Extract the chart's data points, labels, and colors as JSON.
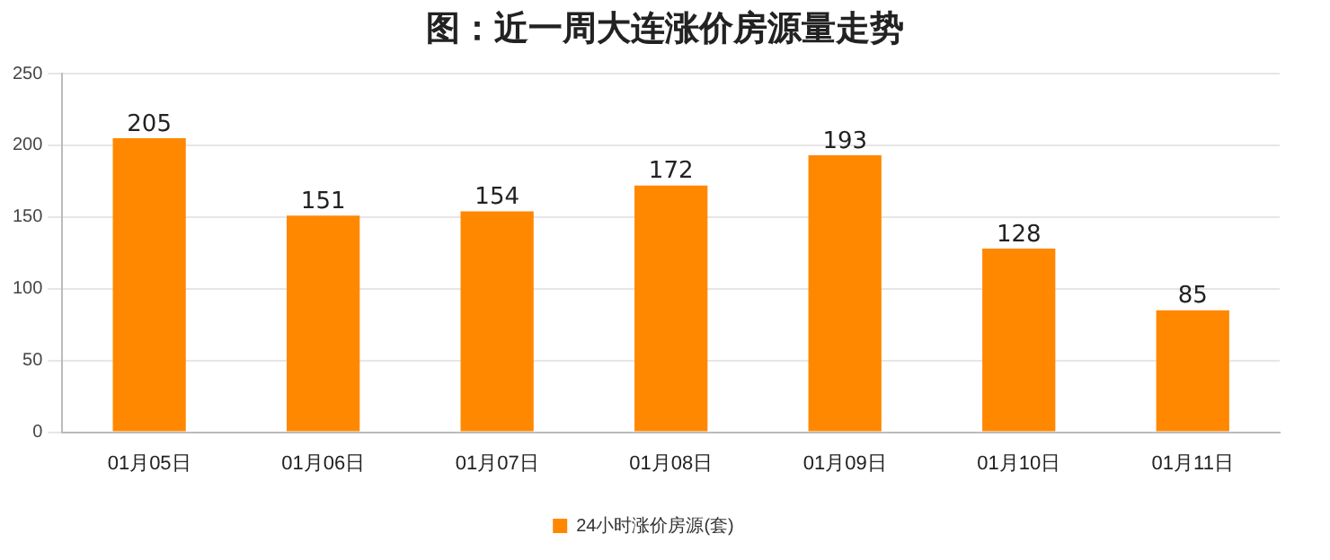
{
  "chart_data": {
    "type": "bar",
    "title": "图：近一周大连涨价房源量走势",
    "categories": [
      "01月05日",
      "01月06日",
      "01月07日",
      "01月08日",
      "01月09日",
      "01月10日",
      "01月11日"
    ],
    "series": [
      {
        "name": "24小时涨价房源(套)",
        "color": "#ff8800",
        "values": [
          205,
          151,
          154,
          172,
          193,
          128,
          85
        ]
      }
    ],
    "ylim": [
      0,
      250
    ],
    "yticks": [
      0,
      50,
      100,
      150,
      200,
      250
    ],
    "grid": "y",
    "legend": "bottom",
    "data_labels": true
  }
}
